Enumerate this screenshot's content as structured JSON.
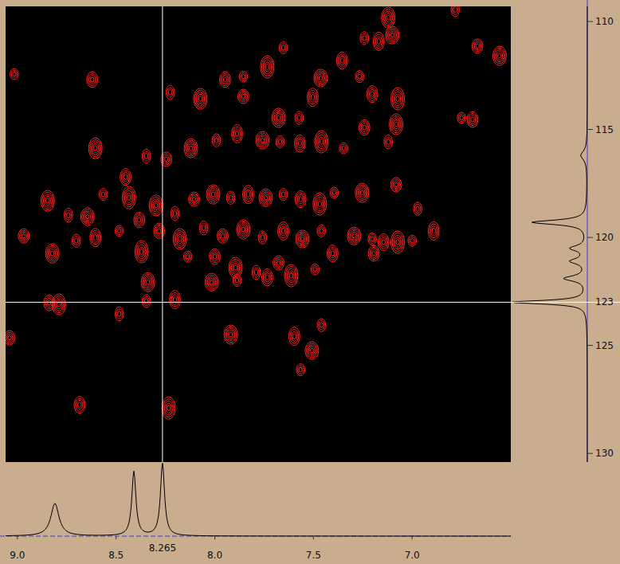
{
  "chart_data": {
    "type": "scatter",
    "marker": "contour",
    "color": "#ff2020",
    "grid": false,
    "xlim": [
      9.06,
      6.5
    ],
    "ylim": [
      109.3,
      130.4
    ],
    "xticks": [
      {
        "value": 9,
        "label": "9.0"
      },
      8.5,
      {
        "value": 8,
        "label": "8.0"
      },
      7.5,
      {
        "value": 7,
        "label": "7.0"
      }
    ],
    "yticks": [
      110,
      115,
      120,
      125,
      130
    ],
    "crosshair": {
      "x": 8.265,
      "y": 123
    },
    "x": [
      9.016,
      8.621,
      7.121,
      6.782,
      6.669,
      6.557,
      7.242,
      7.169,
      7.101,
      7.653,
      7.355,
      7.734,
      7.855,
      7.948,
      8.073,
      8.226,
      7.855,
      7.677,
      7.573,
      7.504,
      7.464,
      7.266,
      7.202,
      7.073,
      6.75,
      6.694,
      8.605,
      8.347,
      8.246,
      8.121,
      7.992,
      7.887,
      7.758,
      7.669,
      7.569,
      7.46,
      7.347,
      7.242,
      7.081,
      7.121,
      7.081,
      7.254,
      6.972,
      6.891,
      7.294,
      7.202,
      7.145,
      7.073,
      7.0,
      7.194,
      8.847,
      8.742,
      8.968,
      8.823,
      8.702,
      8.605,
      8.645,
      8.565,
      8.452,
      8.435,
      8.484,
      8.383,
      8.298,
      8.202,
      8.105,
      8.008,
      7.919,
      7.831,
      7.742,
      7.653,
      7.565,
      7.468,
      7.395,
      8.282,
      8.177,
      8.056,
      7.96,
      7.855,
      7.758,
      7.653,
      7.556,
      7.46,
      7.403,
      8.371,
      8.137,
      8.0,
      7.895,
      7.79,
      7.677,
      8.339,
      8.347,
      8.202,
      8.016,
      7.887,
      7.734,
      7.613,
      7.492,
      8.839,
      8.79,
      8.484,
      9.04,
      7.919,
      7.46,
      7.597,
      7.508,
      7.565,
      8.685,
      8.234
    ],
    "values": [
      112.44,
      112.69,
      109.82,
      109.45,
      111.14,
      111.59,
      110.77,
      110.92,
      110.63,
      111.22,
      111.81,
      112.1,
      112.55,
      112.69,
      113.58,
      113.28,
      113.47,
      114.46,
      114.46,
      113.51,
      112.62,
      112.55,
      113.36,
      113.58,
      114.46,
      114.54,
      115.87,
      116.24,
      116.38,
      115.87,
      115.5,
      115.2,
      115.5,
      115.57,
      115.65,
      115.57,
      115.87,
      114.91,
      114.76,
      115.57,
      117.56,
      117.93,
      118.67,
      119.7,
      119.93,
      120.07,
      120.22,
      120.22,
      120.15,
      120.74,
      118.3,
      118.97,
      119.93,
      120.74,
      120.15,
      120.0,
      119.04,
      118.01,
      117.2,
      118.16,
      119.7,
      119.19,
      118.52,
      118.89,
      118.23,
      118.01,
      118.16,
      118.01,
      118.16,
      118.01,
      118.23,
      118.45,
      117.93,
      119.7,
      120.07,
      119.56,
      119.93,
      119.63,
      120.0,
      119.7,
      120.07,
      119.7,
      120.74,
      120.66,
      120.89,
      120.89,
      121.4,
      121.62,
      121.18,
      122.07,
      122.95,
      122.88,
      122.07,
      121.99,
      121.85,
      121.77,
      121.48,
      123.03,
      123.1,
      123.54,
      124.65,
      124.5,
      124.06,
      124.58,
      125.24,
      126.13,
      127.75,
      127.9
    ],
    "x_trace": {
      "positions": [
        8.81,
        8.41,
        8.265
      ],
      "heights": [
        0.41,
        0.81,
        0.91
      ],
      "widths": [
        0.05,
        0.025,
        0.025
      ]
    },
    "y_trace": {
      "positions": [
        116.2,
        119.3,
        120.5,
        121.1,
        121.9,
        123
      ],
      "heights": [
        0.08,
        0.69,
        0.2,
        0.2,
        0.28,
        0.95
      ],
      "widths": [
        0.5,
        0.25,
        0.3,
        0.3,
        0.3,
        0.2
      ]
    }
  }
}
